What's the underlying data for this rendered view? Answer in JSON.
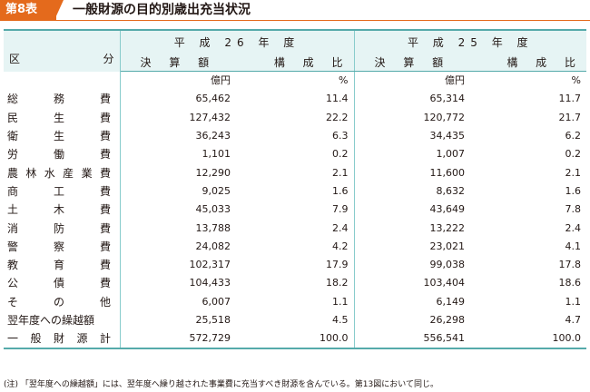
{
  "header": {
    "badge": "第8表",
    "title": "一般財源の目的別歳出充当状況"
  },
  "table": {
    "kubun_left": "区",
    "kubun_right": "分",
    "years": [
      "平 成 26 年 度",
      "平 成 25 年 度"
    ],
    "col_amount": "決 算 額",
    "col_ratio": "構 成 比",
    "unit_amount": "億円",
    "unit_ratio": "%",
    "rows": [
      {
        "label": [
          "総",
          "務",
          "費"
        ],
        "a26": "65,462",
        "r26": "11.4",
        "a25": "65,314",
        "r25": "11.7"
      },
      {
        "label": [
          "民",
          "生",
          "費"
        ],
        "a26": "127,432",
        "r26": "22.2",
        "a25": "120,772",
        "r25": "21.7"
      },
      {
        "label": [
          "衛",
          "生",
          "費"
        ],
        "a26": "36,243",
        "r26": "6.3",
        "a25": "34,435",
        "r25": "6.2"
      },
      {
        "label": [
          "労",
          "働",
          "費"
        ],
        "a26": "1,101",
        "r26": "0.2",
        "a25": "1,007",
        "r25": "0.2"
      },
      {
        "label": [
          "農",
          "林",
          "水",
          "産",
          "業",
          "費"
        ],
        "a26": "12,290",
        "r26": "2.1",
        "a25": "11,600",
        "r25": "2.1"
      },
      {
        "label": [
          "商",
          "工",
          "費"
        ],
        "a26": "9,025",
        "r26": "1.6",
        "a25": "8,632",
        "r25": "1.6"
      },
      {
        "label": [
          "土",
          "木",
          "費"
        ],
        "a26": "45,033",
        "r26": "7.9",
        "a25": "43,649",
        "r25": "7.8"
      },
      {
        "label": [
          "消",
          "防",
          "費"
        ],
        "a26": "13,788",
        "r26": "2.4",
        "a25": "13,222",
        "r25": "2.4"
      },
      {
        "label": [
          "警",
          "察",
          "費"
        ],
        "a26": "24,082",
        "r26": "4.2",
        "a25": "23,021",
        "r25": "4.1"
      },
      {
        "label": [
          "教",
          "育",
          "費"
        ],
        "a26": "102,317",
        "r26": "17.9",
        "a25": "99,038",
        "r25": "17.8"
      },
      {
        "label": [
          "公",
          "債",
          "費"
        ],
        "a26": "104,433",
        "r26": "18.2",
        "a25": "103,404",
        "r25": "18.6"
      },
      {
        "label": [
          "そ",
          "の",
          "他"
        ],
        "a26": "6,007",
        "r26": "1.1",
        "a25": "6,149",
        "r25": "1.1"
      },
      {
        "label": [
          "翌年度への繰越額"
        ],
        "a26": "25,518",
        "r26": "4.5",
        "a25": "26,298",
        "r25": "4.7"
      },
      {
        "label": [
          "一",
          "般",
          "財",
          "源",
          "計"
        ],
        "a26": "572,729",
        "r26": "100.0",
        "a25": "556,541",
        "r25": "100.0"
      }
    ]
  },
  "note": "(注) 「翌年度への繰越額」には、翌年度へ繰り越された事業費に充当すべき財源を含んでいる。第13図において同じ。"
}
